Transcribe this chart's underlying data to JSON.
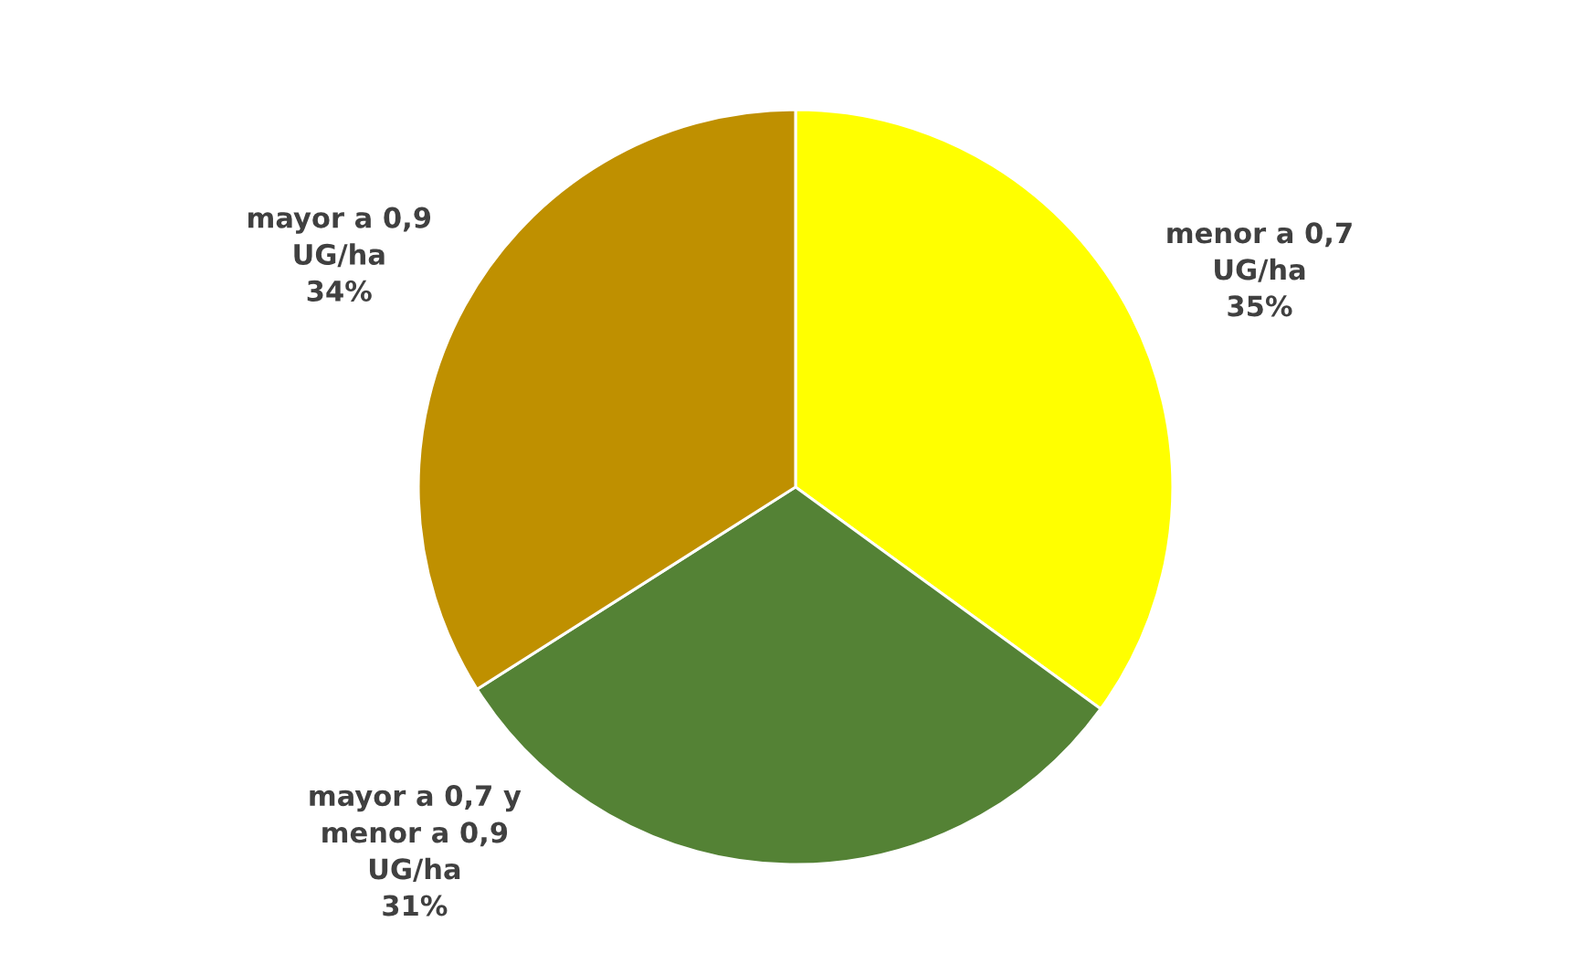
{
  "chart_data": {
    "type": "pie",
    "categories": [
      "menor a 0,7\nUG/ha",
      "mayor a 0,7 y\nmenor a 0,9\nUG/ha",
      "mayor a 0,9\nUG/ha"
    ],
    "values": [
      35,
      31,
      34
    ],
    "value_labels": [
      "35%",
      "31%",
      "34%"
    ],
    "colors": [
      "#ffff00",
      "#548235",
      "#bf9000"
    ]
  }
}
